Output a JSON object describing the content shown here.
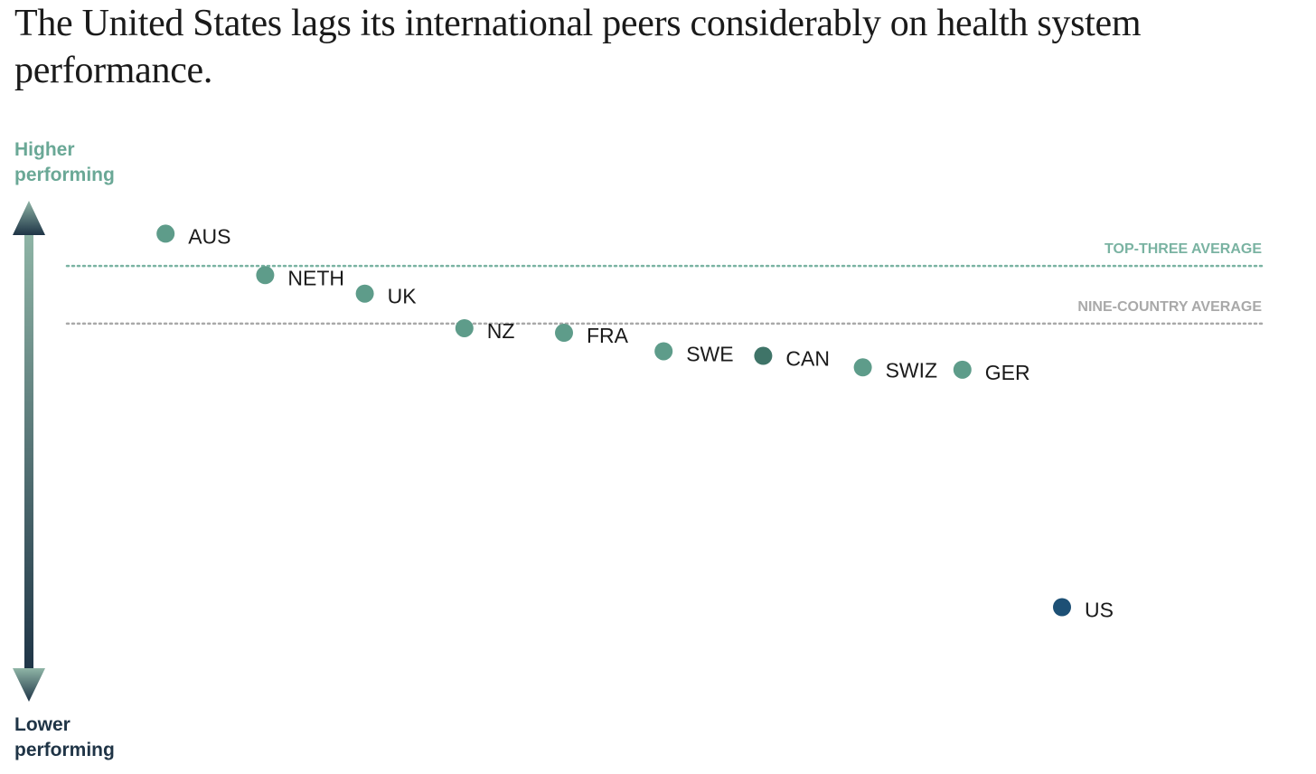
{
  "title": "The United States lags its international peers considerably on health system performance.",
  "axis": {
    "top_label": [
      "Higher",
      "performing"
    ],
    "bottom_label": [
      "Lower",
      "performing"
    ]
  },
  "colors": {
    "title": "#1a1a1a",
    "top_label": "#6aa896",
    "bottom_label": "#1f3446",
    "arrow_top": "#8fb5a6",
    "arrow_bottom": "#1e3446",
    "point_peer": "#5e9c8a",
    "point_can": "#3f7468",
    "point_us": "#1d5075",
    "top_three_line": "#7ab3a2",
    "nine_country_line": "#a9a9a9"
  },
  "chart_data": {
    "type": "scatter",
    "title": "The United States lags its international peers considerably on health system performance.",
    "xlabel": "",
    "ylabel": "",
    "y_axis_direction": "Higher performing at top, lower performing at bottom",
    "tick_labels": "none",
    "grid": false,
    "legend": "none",
    "points": [
      {
        "label": "AUS",
        "rank": 1,
        "score": 0.82
      },
      {
        "label": "NETH",
        "rank": 2,
        "score": 0.64
      },
      {
        "label": "UK",
        "rank": 3,
        "score": 0.56
      },
      {
        "label": "NZ",
        "rank": 4,
        "score": 0.41
      },
      {
        "label": "FRA",
        "rank": 5,
        "score": 0.39
      },
      {
        "label": "SWE",
        "rank": 6,
        "score": 0.31
      },
      {
        "label": "CAN",
        "rank": 7,
        "score": 0.29
      },
      {
        "label": "SWIZ",
        "rank": 8,
        "score": 0.24
      },
      {
        "label": "GER",
        "rank": 9,
        "score": 0.23
      },
      {
        "label": "US",
        "rank": 10,
        "score": -0.8
      }
    ],
    "reference_lines": [
      {
        "label": "TOP-THREE AVERAGE",
        "value": 0.68
      },
      {
        "label": "NINE-COUNTRY AVERAGE",
        "value": 0.43
      }
    ]
  }
}
